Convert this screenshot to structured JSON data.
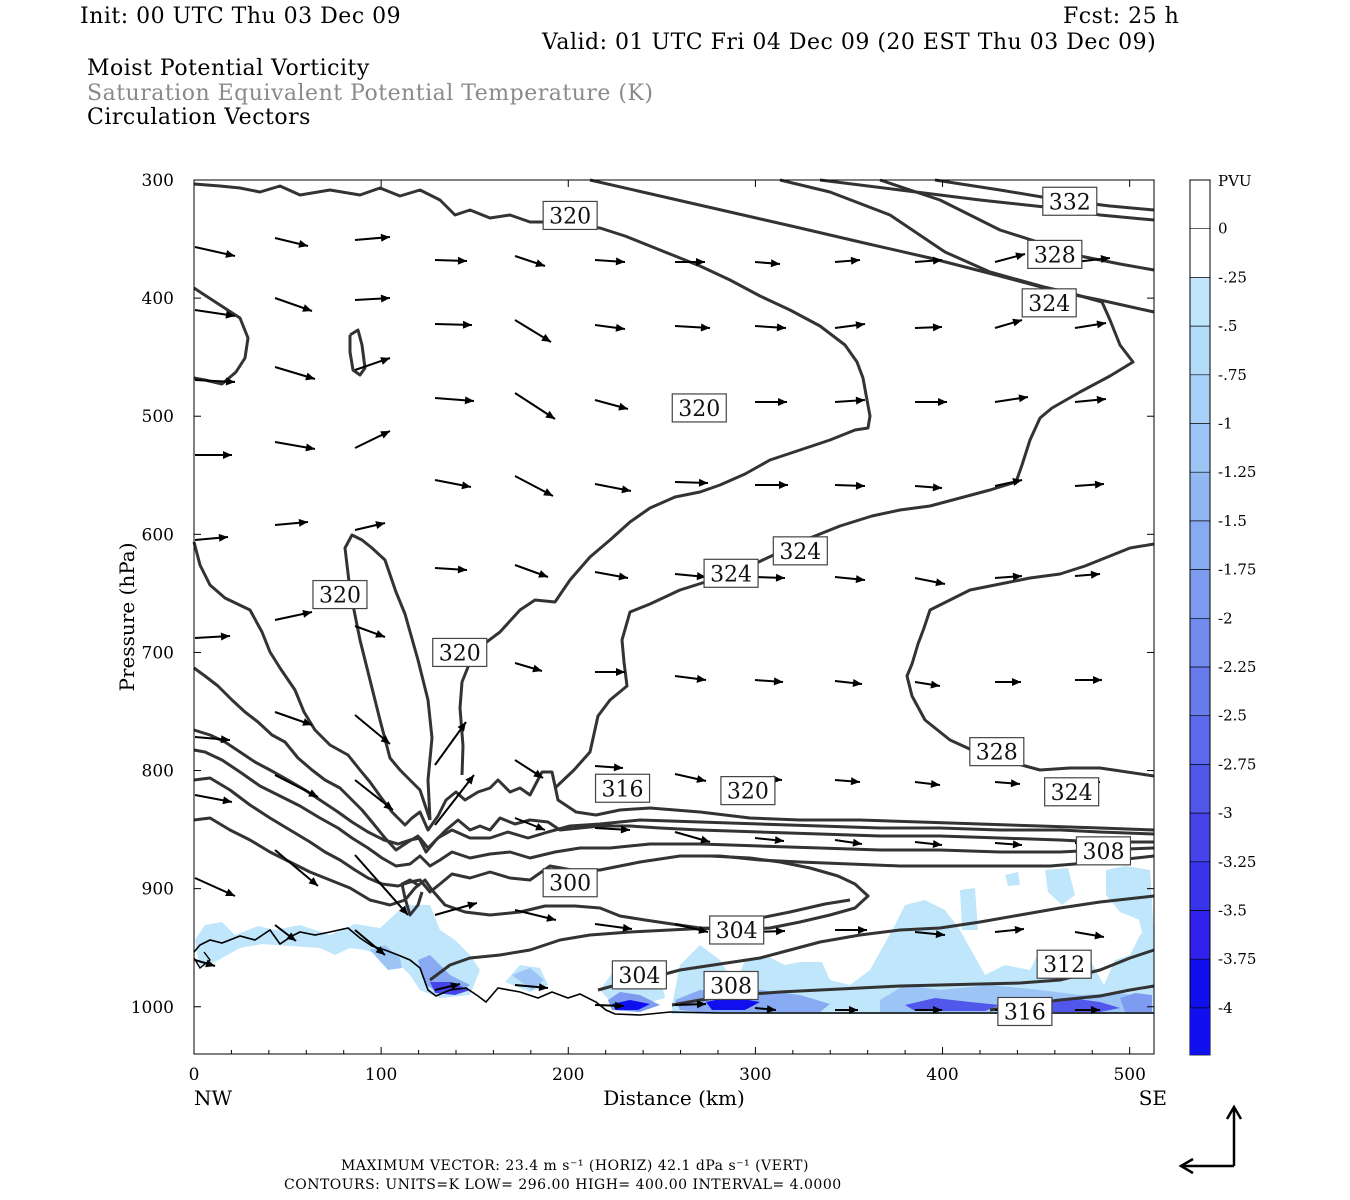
{
  "header": {
    "init": "Init: 00 UTC Thu 03 Dec 09",
    "fcst": "Fcst:   25 h",
    "valid": "Valid: 01 UTC Fri 04 Dec 09 (20 EST Thu 03 Dec 09)",
    "field1": "Moist Potential Vorticity",
    "field2": "Saturation Equivalent Potential Temperature (K)",
    "field3": "Circulation Vectors"
  },
  "footer": {
    "max_vector": "MAXIMUM VECTOR:  23.4 m s⁻¹ (HORIZ)          42.1 dPa s⁻¹ (VERT)",
    "contours": "CONTOURS:  UNITS=K  LOW=  296.00        HIGH=  400.00          INTERVAL=    4.0000"
  },
  "colors": {
    "contour": "#333333",
    "vector": "#000000",
    "pv_light": "#bfe6fb",
    "pv_dark": "#1010ee"
  },
  "chart_data": {
    "type": "cross-section",
    "xlabel": "Distance (km)",
    "ylabel": "Pressure (hPa)",
    "xlim": [
      0,
      513
    ],
    "ylim": [
      1040,
      300
    ],
    "x_ticks": [
      "0",
      "100",
      "200",
      "300",
      "400",
      "500"
    ],
    "x_tick_values": [
      0,
      100,
      200,
      300,
      400,
      500
    ],
    "y_ticks": [
      "300",
      "400",
      "500",
      "600",
      "700",
      "800",
      "900",
      "1000"
    ],
    "y_tick_values": [
      300,
      400,
      500,
      600,
      700,
      800,
      900,
      1000
    ],
    "x_end_labels": {
      "left": "NW",
      "right": "SE"
    },
    "colorbar": {
      "title": "PVU",
      "labels": [
        "0",
        "-.25",
        "-.5",
        "-.75",
        "-1",
        "-1.25",
        "-1.5",
        "-1.75",
        "-2",
        "-2.25",
        "-2.5",
        "-2.75",
        "-3",
        "-3.25",
        "-3.5",
        "-3.75",
        "-4"
      ],
      "colors": [
        "#ffffff",
        "#ffffff",
        "#bfe6fb",
        "#b3dcfa",
        "#a7d1f8",
        "#9cc5f6",
        "#92b8f4",
        "#87aaf2",
        "#7d9bf0",
        "#728bee",
        "#687bed",
        "#5d69ec",
        "#5257ec",
        "#4645ec",
        "#3a33ec",
        "#2f22ed",
        "#1010ee"
      ]
    },
    "contour_labels": [
      {
        "text": "332",
        "x": 468,
        "p": 318
      },
      {
        "text": "328",
        "x": 460,
        "p": 363
      },
      {
        "text": "324",
        "x": 457,
        "p": 404
      },
      {
        "text": "320",
        "x": 201,
        "p": 330
      },
      {
        "text": "320",
        "x": 270,
        "p": 493
      },
      {
        "text": "324",
        "x": 324,
        "p": 614
      },
      {
        "text": "324",
        "x": 287,
        "p": 633
      },
      {
        "text": "320",
        "x": 78,
        "p": 651
      },
      {
        "text": "320",
        "x": 142,
        "p": 700
      },
      {
        "text": "328",
        "x": 429,
        "p": 784
      },
      {
        "text": "324",
        "x": 469,
        "p": 818
      },
      {
        "text": "316",
        "x": 229,
        "p": 815
      },
      {
        "text": "320",
        "x": 296,
        "p": 817
      },
      {
        "text": "308",
        "x": 486,
        "p": 868
      },
      {
        "text": "300",
        "x": 201,
        "p": 895
      },
      {
        "text": "304",
        "x": 290,
        "p": 935
      },
      {
        "text": "304",
        "x": 238,
        "p": 973
      },
      {
        "text": "308",
        "x": 287,
        "p": 982
      },
      {
        "text": "312",
        "x": 465,
        "p": 964
      },
      {
        "text": "316",
        "x": 444,
        "p": 1004
      }
    ]
  }
}
